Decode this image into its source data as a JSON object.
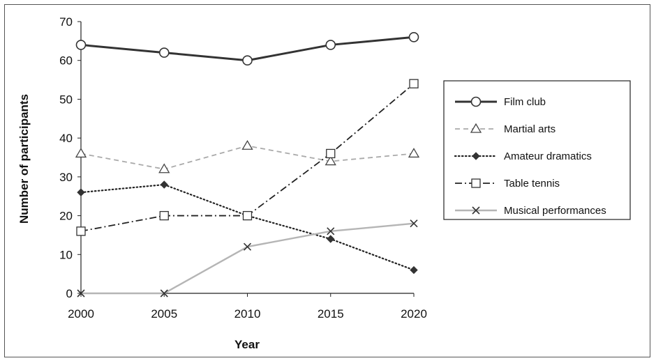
{
  "chart_data": {
    "type": "line",
    "title": "",
    "xlabel": "Year",
    "ylabel": "Number of participants",
    "x": [
      2000,
      2005,
      2010,
      2015,
      2020
    ],
    "ylim": [
      0,
      70
    ],
    "yticks": [
      0,
      10,
      20,
      30,
      40,
      50,
      60,
      70
    ],
    "grid": false,
    "legend_position": "right",
    "series": [
      {
        "name": "Film club",
        "values": [
          64,
          62,
          60,
          64,
          66
        ],
        "color": "#333333",
        "marker": "circle",
        "line": "solid-thick"
      },
      {
        "name": "Martial arts",
        "values": [
          36,
          32,
          38,
          34,
          36
        ],
        "color": "#aaaaaa",
        "marker": "triangle",
        "line": "dashed"
      },
      {
        "name": "Amateur dramatics",
        "values": [
          26,
          28,
          20,
          14,
          6
        ],
        "color": "#222222",
        "marker": "diamond",
        "line": "dotted"
      },
      {
        "name": "Table tennis",
        "values": [
          16,
          20,
          20,
          36,
          54
        ],
        "color": "#222222",
        "marker": "square",
        "line": "dashdot"
      },
      {
        "name": "Musical performances",
        "values": [
          0,
          0,
          12,
          16,
          18
        ],
        "color": "#b5b5b5",
        "marker": "x",
        "line": "solid-light"
      }
    ]
  }
}
